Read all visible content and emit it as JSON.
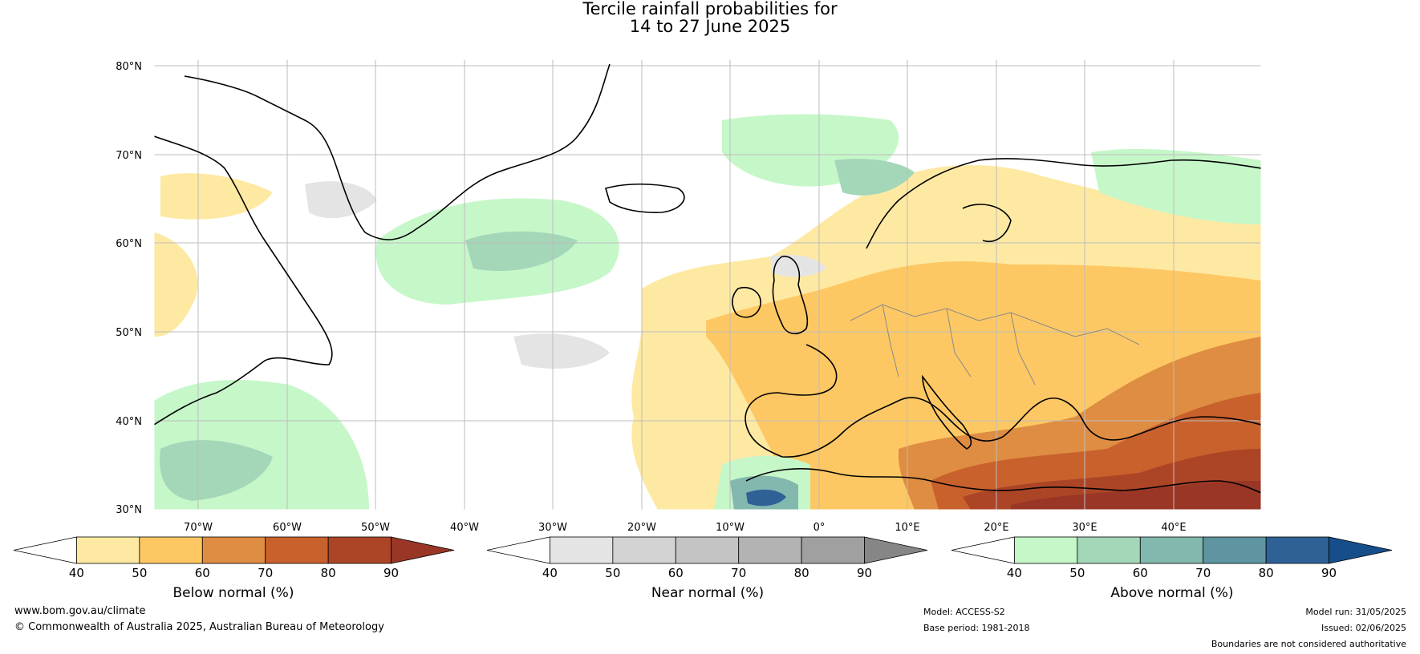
{
  "title": {
    "line1": "Tercile rainfall probabilities for",
    "line2": "14 to 27 June 2025"
  },
  "map": {
    "lat_labels": [
      "80°N",
      "70°N",
      "60°N",
      "50°N",
      "40°N",
      "30°N"
    ],
    "lon_labels": [
      "70°W",
      "60°W",
      "50°W",
      "40°W",
      "30°W",
      "20°W",
      "10°W",
      "0°",
      "10°E",
      "20°E",
      "30°E",
      "40°E"
    ],
    "extent": {
      "lon": [
        -75,
        50
      ],
      "lat": [
        30,
        81
      ]
    }
  },
  "colorbars": [
    {
      "label": "Below normal (%)",
      "ticks": [
        "40",
        "50",
        "60",
        "70",
        "80",
        "90"
      ],
      "colors": [
        "#ffffff",
        "#fee9a3",
        "#fdc863",
        "#de8d42",
        "#c9612d",
        "#ac4526",
        "#993626"
      ]
    },
    {
      "label": "Near normal (%)",
      "ticks": [
        "40",
        "50",
        "60",
        "70",
        "80",
        "90"
      ],
      "colors": [
        "#ffffff",
        "#e4e4e4",
        "#d3d3d3",
        "#c4c4c4",
        "#b3b3b3",
        "#a0a0a0",
        "#868686"
      ]
    },
    {
      "label": "Above normal (%)",
      "ticks": [
        "40",
        "50",
        "60",
        "70",
        "80",
        "90"
      ],
      "colors": [
        "#ffffff",
        "#c6f7c9",
        "#a3d7b8",
        "#82b8ae",
        "#5e95a0",
        "#2f6196",
        "#164e8b"
      ]
    }
  ],
  "footer": {
    "url": "www.bom.gov.au/climate",
    "copyright": "© Commonwealth of Australia 2025, Australian Bureau of Meteorology",
    "model": "Model: ACCESS-S2",
    "base_period": "Base period: 1981-2018",
    "model_run": "Model run: 31/05/2025",
    "issued": "Issued: 02/06/2025",
    "boundaries": "Boundaries are not considered authoritative"
  }
}
